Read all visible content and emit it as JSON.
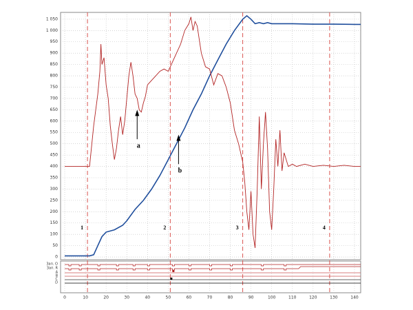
{
  "chart_data": {
    "type": "line",
    "xlim": [
      -2,
      143
    ],
    "xticks": [
      0,
      10,
      20,
      30,
      40,
      50,
      60,
      70,
      80,
      90,
      100,
      110,
      120,
      130,
      140
    ],
    "ylim": [
      -12,
      1080
    ],
    "yticks": [
      0,
      50,
      100,
      150,
      200,
      250,
      300,
      350,
      400,
      450,
      500,
      550,
      600,
      650,
      700,
      750,
      800,
      850,
      900,
      950,
      {
        "value": 1000,
        "label": "1 000"
      },
      {
        "value": 1050,
        "label": "1 050"
      }
    ],
    "grid": true,
    "series": [
      {
        "color": "#1f4e9c",
        "x": [
          0,
          10,
          12,
          14,
          16,
          18,
          20,
          24,
          28,
          30,
          34,
          38,
          42,
          46,
          50,
          54,
          58,
          62,
          66,
          70,
          74,
          78,
          82,
          86,
          88,
          90,
          92,
          94,
          96,
          98,
          100,
          110,
          120,
          130,
          140,
          143
        ],
        "values": [
          5,
          5,
          5,
          10,
          50,
          90,
          110,
          120,
          140,
          160,
          210,
          250,
          300,
          360,
          430,
          500,
          570,
          650,
          720,
          800,
          870,
          940,
          1000,
          1050,
          1065,
          1050,
          1030,
          1035,
          1030,
          1035,
          1030,
          1030,
          1028,
          1028,
          1027,
          1027
        ]
      },
      {
        "color": "#b22222",
        "x": [
          0,
          12,
          14,
          16,
          17,
          17.5,
          18,
          19,
          20,
          21,
          22,
          23,
          24,
          25,
          26,
          27,
          28,
          29,
          30,
          31,
          32,
          33,
          34,
          35,
          36,
          37,
          38,
          39,
          40,
          42,
          44,
          46,
          48,
          50,
          52,
          54,
          56,
          58,
          60,
          61,
          62,
          63,
          64,
          66,
          68,
          70,
          72,
          74,
          76,
          78,
          80,
          82,
          84,
          86,
          87,
          88,
          89,
          90,
          91,
          92,
          93,
          94,
          95,
          96,
          97,
          98,
          99,
          100,
          101,
          102,
          103,
          104,
          105,
          106,
          108,
          110,
          112,
          116,
          120,
          125,
          130,
          135,
          140,
          143
        ],
        "values": [
          400,
          400,
          580,
          720,
          820,
          940,
          850,
          880,
          760,
          700,
          580,
          500,
          430,
          480,
          560,
          620,
          540,
          600,
          700,
          800,
          860,
          800,
          720,
          700,
          650,
          640,
          680,
          710,
          760,
          780,
          800,
          820,
          830,
          820,
          860,
          900,
          940,
          1000,
          1030,
          1060,
          1000,
          1040,
          1020,
          900,
          840,
          830,
          760,
          810,
          800,
          750,
          680,
          560,
          500,
          420,
          330,
          200,
          120,
          290,
          100,
          40,
          300,
          620,
          300,
          500,
          640,
          480,
          200,
          120,
          300,
          520,
          400,
          560,
          380,
          460,
          400,
          410,
          400,
          410,
          400,
          405,
          400,
          405,
          400,
          400
        ]
      }
    ],
    "markers": [
      {
        "x": 11,
        "label": "1"
      },
      {
        "x": 51,
        "label": "2"
      },
      {
        "x": 86,
        "label": "3"
      },
      {
        "x": 128,
        "label": "4"
      }
    ],
    "marker_color": "#d9534f",
    "annotations": [
      "a",
      "b"
    ],
    "signals": [
      "Зап. O",
      "Зап. R",
      "A",
      "B",
      "C",
      "D"
    ]
  }
}
